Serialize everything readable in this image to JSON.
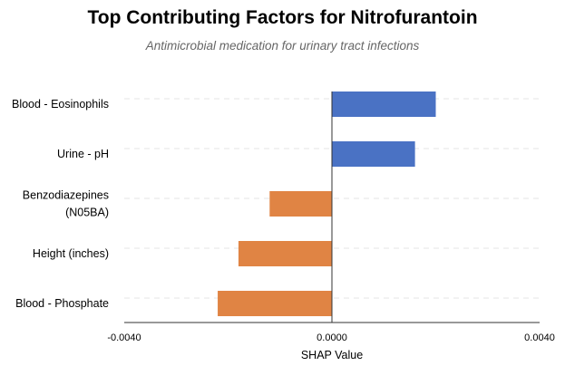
{
  "title": "Top Contributing Factors for Nitrofurantoin",
  "subtitle": "Antimicrobial medication for urinary tract infections",
  "chart_data": {
    "type": "bar",
    "orientation": "horizontal",
    "title": "Top Contributing Factors for Nitrofurantoin",
    "subtitle": "Antimicrobial medication for urinary tract infections",
    "categories": [
      [
        "Blood - Eosinophils"
      ],
      [
        "Urine - pH"
      ],
      [
        "Benzodiazepines",
        "(N05BA)"
      ],
      [
        "Height (inches)"
      ],
      [
        "Blood - Phosphate"
      ]
    ],
    "values": [
      0.002,
      0.0016,
      -0.0012,
      -0.0018,
      -0.0022
    ],
    "xlabel": "SHAP Value",
    "ylabel": "",
    "xlim": [
      -0.004,
      0.004
    ],
    "xticks": [
      -0.004,
      0.0,
      0.004
    ],
    "xtick_labels": [
      "-0.0040",
      "0.0000",
      "0.0040"
    ],
    "grid": "dashed horizontal",
    "colors": {
      "positive": "#4a72c4",
      "negative": "#e08444",
      "zero_line": "#333333",
      "grid": "#e4e4e4"
    }
  }
}
